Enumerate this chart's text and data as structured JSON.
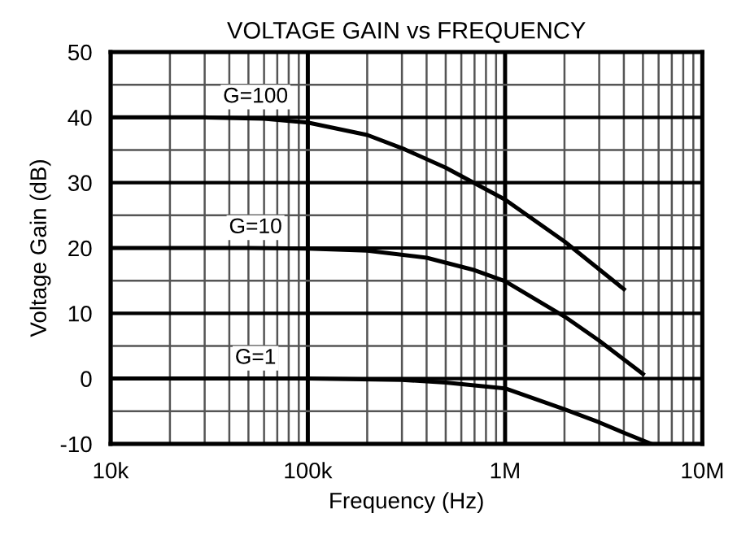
{
  "chart_data": {
    "type": "line",
    "title": "VOLTAGE GAIN vs FREQUENCY",
    "xlabel": "Frequency (Hz)",
    "ylabel": "Voltage Gain (dB)",
    "log": "x",
    "grid": true,
    "line_style": "solid",
    "marker": "none",
    "xlim": [
      10000,
      10000000
    ],
    "xticks": [
      {
        "value": 10000,
        "label": "10k"
      },
      {
        "value": 100000,
        "label": "100k"
      },
      {
        "value": 1000000,
        "label": "1M"
      },
      {
        "value": 10000000,
        "label": "10M"
      }
    ],
    "ylim": [
      -10,
      50
    ],
    "yticks": [
      -10,
      0,
      10,
      20,
      30,
      40,
      50
    ],
    "series": [
      {
        "name": "G=100",
        "color": "#000000",
        "x": [
          10000,
          30000,
          60000,
          100000,
          200000,
          310000,
          500000,
          1000000,
          2000000,
          4000000
        ],
        "values": [
          40,
          40,
          39.8,
          39.2,
          37.3,
          35.1,
          32.3,
          27.4,
          21,
          13.7
        ]
      },
      {
        "name": "G=10",
        "color": "#000000",
        "x": [
          10000,
          50000,
          100000,
          200000,
          400000,
          700000,
          1000000,
          2000000,
          3000000,
          5000000
        ],
        "values": [
          20,
          20,
          19.9,
          19.6,
          18.5,
          16.6,
          14.9,
          9.5,
          5.8,
          0.7
        ]
      },
      {
        "name": "G=1",
        "color": "#000000",
        "x": [
          10000,
          100000,
          300000,
          500000,
          1000000,
          2000000,
          3000000,
          4000000,
          5500000
        ],
        "values": [
          0,
          0,
          -0.2,
          -0.6,
          -1.5,
          -4.7,
          -6.7,
          -8.3,
          -10
        ]
      }
    ]
  }
}
